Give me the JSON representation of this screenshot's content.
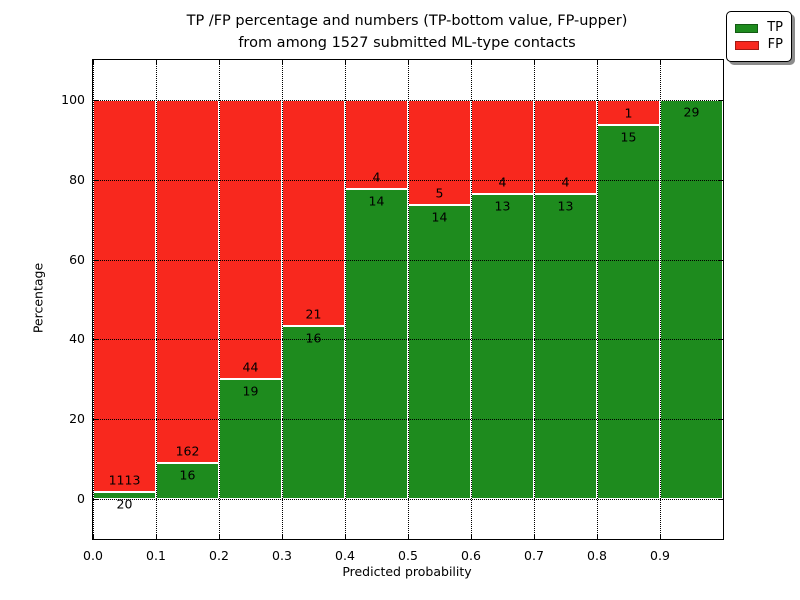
{
  "title": {
    "line1": "TP /FP percentage and numbers (TP-bottom value, FP-upper)",
    "line2": "from among 1527 submitted ML-type contacts"
  },
  "axes": {
    "xlabel": "Predicted probability",
    "ylabel": "Percentage",
    "x_tick_labels": [
      "0.0",
      "0.1",
      "0.2",
      "0.3",
      "0.4",
      "0.5",
      "0.6",
      "0.7",
      "0.8",
      "0.9"
    ],
    "y_tick_labels": [
      "0",
      "20",
      "40",
      "60",
      "80",
      "100"
    ],
    "y_tick_values": [
      0,
      20,
      40,
      60,
      80,
      100
    ],
    "ylim": [
      -10,
      110
    ],
    "grid": true
  },
  "legend": {
    "position": "upper right",
    "entries": [
      {
        "label": "TP",
        "color": "#1e8b1e"
      },
      {
        "label": "FP",
        "color": "#f8281e"
      }
    ]
  },
  "chart_data": {
    "type": "bar",
    "stacked": true,
    "normalized": "percent_of_bin",
    "title": "TP /FP percentage and numbers (TP-bottom value, FP-upper) from among 1527 submitted ML-type contacts",
    "xlabel": "Predicted probability",
    "ylabel": "Percentage",
    "ylim": [
      -10,
      110
    ],
    "bin_edges": [
      0.0,
      0.1,
      0.2,
      0.3,
      0.4,
      0.5,
      0.6,
      0.7,
      0.8,
      0.9,
      1.0
    ],
    "series": [
      {
        "name": "TP",
        "color": "#1e8b1e",
        "counts": [
          20,
          16,
          19,
          16,
          14,
          14,
          13,
          13,
          15,
          29
        ]
      },
      {
        "name": "FP",
        "color": "#f8281e",
        "counts": [
          1113,
          162,
          44,
          21,
          4,
          5,
          4,
          4,
          1,
          0
        ]
      }
    ],
    "total_contacts": 1527,
    "bar_value_labels": {
      "tp": [
        "20",
        "16",
        "19",
        "16",
        "14",
        "14",
        "13",
        "13",
        "15",
        "29"
      ],
      "fp": [
        "1113",
        "162",
        "44",
        "21",
        "4",
        "5",
        "4",
        "4",
        "1",
        ""
      ]
    }
  },
  "colors": {
    "tp": "#1e8b1e",
    "fp": "#f8281e",
    "grid": "#000000",
    "frame": "#000000",
    "background": "#ffffff"
  }
}
